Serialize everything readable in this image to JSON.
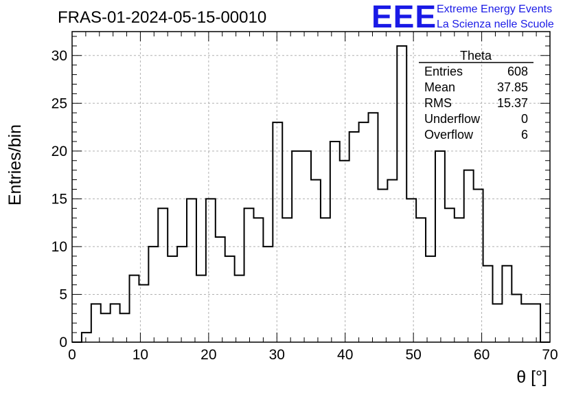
{
  "title": "FRAS-01-2024-05-15-00010",
  "brand": {
    "logo": "EEE",
    "line1": "Extreme Energy Events",
    "line2": "La Scienza nelle Scuole"
  },
  "stats": {
    "name": "Theta",
    "rows": [
      {
        "label": "Entries",
        "value": "608"
      },
      {
        "label": "Mean",
        "value": "37.85"
      },
      {
        "label": "RMS",
        "value": "15.37"
      },
      {
        "label": "Underflow",
        "value": "0"
      },
      {
        "label": "Overflow",
        "value": "6"
      }
    ]
  },
  "colors": {
    "line": "#000000",
    "grid": "#b0b0b0",
    "brand": "#1a1ae6"
  },
  "chart_data": {
    "type": "bar",
    "histogram": true,
    "xlabel": "θ [°]",
    "ylabel": "Entries/bin",
    "xlim": [
      0,
      70
    ],
    "ylim": [
      0,
      32.5
    ],
    "grid": true,
    "xticks": [
      "0",
      "10",
      "20",
      "30",
      "40",
      "50",
      "60",
      "70"
    ],
    "yticks": [
      "0",
      "5",
      "10",
      "15",
      "20",
      "25",
      "30"
    ],
    "bin_width": 1.4,
    "bin_edges_start": 0,
    "values": [
      0,
      1,
      4,
      3,
      4,
      3,
      7,
      6,
      10,
      14,
      9,
      10,
      15,
      7,
      15,
      11,
      9,
      7,
      14,
      13,
      10,
      23,
      13,
      20,
      20,
      17,
      13,
      21,
      19,
      22,
      23,
      24,
      16,
      17,
      31,
      15,
      13,
      9,
      20,
      14,
      13,
      18,
      16,
      8,
      4,
      8,
      5,
      4,
      4,
      0
    ]
  }
}
